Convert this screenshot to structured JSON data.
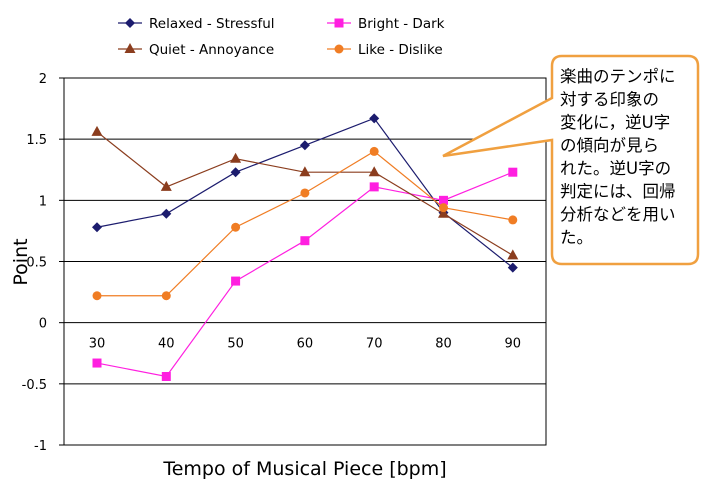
{
  "chart_data": {
    "type": "line",
    "title": "",
    "xlabel": "Tempo of Musical Piece [bpm]",
    "ylabel": "Point",
    "categories": [
      "30",
      "40",
      "50",
      "60",
      "70",
      "80",
      "90"
    ],
    "ylim": [
      -1,
      2
    ],
    "yticks": [
      "2",
      "1.5",
      "1",
      "0.5",
      "0",
      "-0.5",
      "-1"
    ],
    "grid": "horizontal",
    "legend_position": "top",
    "series": [
      {
        "name": "Relaxed - Stressful",
        "marker": "diamond",
        "color": "#1c1c6e",
        "values": [
          0.78,
          0.89,
          1.23,
          1.45,
          1.67,
          0.9,
          0.45
        ]
      },
      {
        "name": "Bright - Dark",
        "marker": "square",
        "color": "#ff1fe0",
        "values": [
          -0.33,
          -0.44,
          0.34,
          0.67,
          1.11,
          1.0,
          1.23
        ]
      },
      {
        "name": "Quiet - Annoyance",
        "marker": "triangle",
        "color": "#8b3d1e",
        "values": [
          1.56,
          1.11,
          1.34,
          1.23,
          1.23,
          0.89,
          0.55
        ]
      },
      {
        "name": "Like - Dislike",
        "marker": "circle",
        "color": "#f07d24",
        "values": [
          0.22,
          0.22,
          0.78,
          1.06,
          1.4,
          0.94,
          0.84
        ]
      }
    ]
  },
  "callout": {
    "lines": [
      "楽曲のテンポに",
      "対する印象の",
      "変化に，逆U字",
      "の傾向が見ら",
      "れた。逆U字の",
      "判定には、回帰",
      "分析などを用い",
      "た。"
    ],
    "border_color": "#f0a040"
  }
}
